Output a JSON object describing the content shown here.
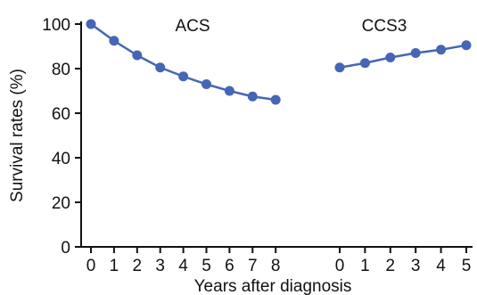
{
  "chart_data": {
    "type": "line",
    "ylabel": "Survival rates (%)",
    "xlabel": "Years after diagnosis",
    "ylim": [
      0,
      100
    ],
    "yticks": [
      0,
      20,
      40,
      60,
      80,
      100
    ],
    "grid": false,
    "legend": "none",
    "series_color": "#4566b5",
    "panels": [
      {
        "title": "ACS",
        "categories": [
          "0",
          "1",
          "2",
          "3",
          "4",
          "5",
          "6",
          "7",
          "8"
        ],
        "values": [
          100,
          92.5,
          86,
          80.5,
          76.5,
          73,
          70,
          67.5,
          66
        ]
      },
      {
        "title": "CCS3",
        "categories": [
          "0",
          "1",
          "2",
          "3",
          "4",
          "5"
        ],
        "values": [
          80.5,
          82.5,
          85,
          87,
          88.5,
          90.5
        ]
      }
    ]
  }
}
